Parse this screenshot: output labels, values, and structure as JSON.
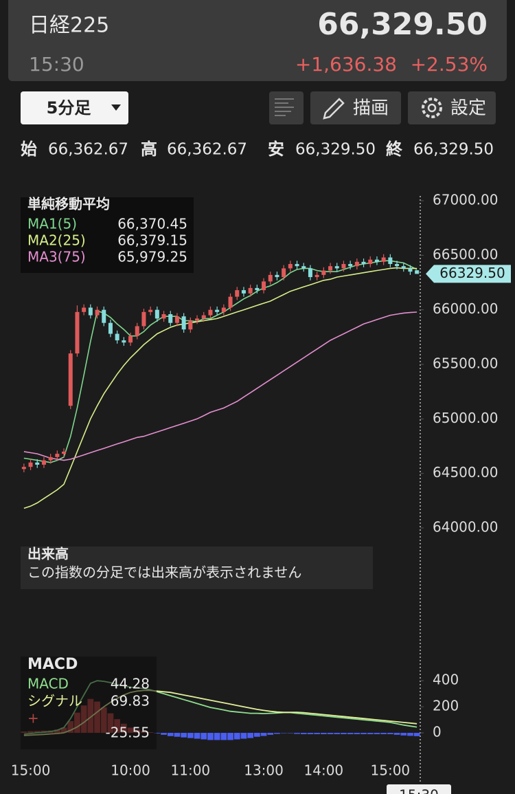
{
  "header": {
    "name": "日経225",
    "price": "66,329.50",
    "time": "15:30",
    "change": "+1,636.38",
    "change_pct": "+2.53%"
  },
  "controls": {
    "interval": "5分足",
    "draw": "描画",
    "settings": "設定"
  },
  "ohlc": {
    "labels": [
      "始",
      "高",
      "安",
      "終"
    ],
    "values": [
      "66,362.67",
      "66,362.67",
      "66,329.50",
      "66,329.50"
    ]
  },
  "volume_panel": {
    "title": "出来高",
    "message": "この指数の分足では出来高が表示されません"
  },
  "cursor_time": "15:30",
  "chart_data": [
    {
      "type": "candlestick",
      "legend_title": "単純移動平均",
      "last_price_label": "66329.50",
      "up_color": "#e05a5a",
      "down_color": "#86dcdc",
      "open": [
        64540,
        64560,
        64600,
        64580,
        64620,
        64650,
        64680,
        65120,
        65600,
        65980,
        66020,
        65950,
        66000,
        65880,
        65780,
        65720,
        65700,
        65760,
        65850,
        65980,
        66000,
        65920,
        65960,
        65880,
        65940,
        65820,
        65900,
        65920,
        65950,
        66000,
        65980,
        66020,
        66120,
        66180,
        66150,
        66200,
        66180,
        66260,
        66320,
        66300,
        66380,
        66420,
        66400,
        66380,
        66300,
        66320,
        66360,
        66400,
        66380,
        66420,
        66400,
        66440,
        66420,
        66460,
        66440,
        66480,
        66420,
        66400,
        66380,
        66362.67
      ],
      "high": [
        64590,
        64630,
        64630,
        64650,
        64680,
        64710,
        64730,
        65630,
        66040,
        66050,
        66050,
        66030,
        66030,
        65910,
        65810,
        65750,
        65790,
        65880,
        66010,
        66030,
        66030,
        65990,
        65990,
        65970,
        65970,
        65930,
        65950,
        65980,
        66030,
        66030,
        66050,
        66150,
        66210,
        66210,
        66230,
        66230,
        66290,
        66350,
        66350,
        66410,
        66450,
        66450,
        66430,
        66410,
        66350,
        66390,
        66430,
        66430,
        66450,
        66450,
        66470,
        66470,
        66490,
        66490,
        66510,
        66510,
        66450,
        66430,
        66410,
        66362.67
      ],
      "low": [
        64510,
        64530,
        64550,
        64550,
        64590,
        64620,
        64650,
        65090,
        65570,
        65950,
        65920,
        65920,
        65850,
        65750,
        65690,
        65670,
        65670,
        65730,
        65820,
        65950,
        65890,
        65890,
        65850,
        65850,
        65790,
        65790,
        65870,
        65890,
        65920,
        65950,
        65950,
        65990,
        66090,
        66120,
        66120,
        66150,
        66150,
        66230,
        66270,
        66270,
        66350,
        66370,
        66350,
        66270,
        66270,
        66290,
        66330,
        66350,
        66350,
        66370,
        66370,
        66390,
        66390,
        66410,
        66410,
        66390,
        66370,
        66350,
        66320,
        66329.5
      ],
      "close": [
        64560,
        64600,
        64580,
        64620,
        64650,
        64680,
        64700,
        65600,
        65980,
        66020,
        65950,
        66000,
        65880,
        65780,
        65720,
        65700,
        65760,
        65850,
        65980,
        66000,
        65920,
        65960,
        65880,
        65940,
        65820,
        65900,
        65920,
        65950,
        66000,
        65980,
        66020,
        66120,
        66180,
        66150,
        66200,
        66180,
        66260,
        66320,
        66300,
        66380,
        66420,
        66400,
        66380,
        66300,
        66320,
        66360,
        66400,
        66380,
        66420,
        66400,
        66440,
        66420,
        66460,
        66440,
        66480,
        66420,
        66400,
        66380,
        66350,
        66329.5
      ],
      "series": [
        {
          "name": "MA1(5)",
          "color": "#7fd88f",
          "legend_value": "66,370.45",
          "values": [
            64640,
            64630,
            64620,
            64610,
            64600,
            64620,
            64650,
            64840,
            65100,
            65400,
            65710,
            65990,
            65970,
            65930,
            65870,
            65820,
            65760,
            65760,
            65800,
            65860,
            65900,
            65940,
            65940,
            65940,
            65900,
            65900,
            65890,
            65920,
            65920,
            65950,
            65980,
            66020,
            66060,
            66100,
            66130,
            66170,
            66200,
            66220,
            66250,
            66290,
            66340,
            66370,
            66380,
            66380,
            66360,
            66350,
            66350,
            66350,
            66370,
            66390,
            66410,
            66420,
            66430,
            66440,
            66450,
            66450,
            66440,
            66430,
            66400,
            66370.45
          ]
        },
        {
          "name": "MA2(25)",
          "color": "#d7ef8a",
          "legend_value": "66,379.15",
          "values": [
            64180,
            64200,
            64230,
            64270,
            64310,
            64350,
            64400,
            64550,
            64700,
            64850,
            65000,
            65120,
            65230,
            65320,
            65410,
            65490,
            65560,
            65620,
            65680,
            65730,
            65780,
            65810,
            65840,
            65860,
            65870,
            65880,
            65890,
            65900,
            65910,
            65920,
            65940,
            65960,
            65980,
            66000,
            66020,
            66040,
            66060,
            66080,
            66110,
            66140,
            66170,
            66190,
            66210,
            66230,
            66250,
            66270,
            66280,
            66300,
            66310,
            66320,
            66330,
            66340,
            66350,
            66360,
            66370,
            66380,
            66385,
            66380,
            66380,
            66379.15
          ]
        },
        {
          "name": "MA3(75)",
          "color": "#e58fd0",
          "legend_value": "65,979.25",
          "values": [
            64700,
            64690,
            64680,
            64660,
            64640,
            64630,
            64620,
            64630,
            64650,
            64670,
            64690,
            64710,
            64730,
            64750,
            64770,
            64790,
            64810,
            64830,
            64840,
            64860,
            64880,
            64900,
            64920,
            64940,
            64960,
            64980,
            65000,
            65030,
            65060,
            65080,
            65100,
            65130,
            65160,
            65200,
            65240,
            65280,
            65320,
            65360,
            65400,
            65440,
            65480,
            65520,
            65560,
            65600,
            65640,
            65680,
            65720,
            65750,
            65780,
            65810,
            65840,
            65870,
            65890,
            65910,
            65930,
            65950,
            65960,
            65970,
            65975,
            65979.25
          ]
        }
      ],
      "ylim": [
        64000,
        67000
      ],
      "yticks": [
        {
          "value": 64000,
          "label": "64000.00"
        },
        {
          "value": 64500,
          "label": "64500.00"
        },
        {
          "value": 65000,
          "label": "65000.00"
        },
        {
          "value": 65500,
          "label": "65500.00"
        },
        {
          "value": 66000,
          "label": "66000.00"
        },
        {
          "value": 66500,
          "label": "66500.00"
        },
        {
          "value": 67000,
          "label": "67000.00"
        }
      ]
    },
    {
      "type": "line",
      "title": "MACD",
      "categories": [
        null,
        "15:00",
        null,
        null,
        null,
        null,
        null,
        null,
        null,
        null,
        null,
        null,
        null,
        null,
        null,
        null,
        "10:00",
        null,
        null,
        null,
        null,
        null,
        null,
        null,
        null,
        "11:00",
        null,
        null,
        null,
        null,
        null,
        null,
        null,
        null,
        null,
        null,
        "13:00",
        null,
        null,
        null,
        null,
        null,
        null,
        null,
        null,
        "14:00",
        null,
        null,
        null,
        null,
        null,
        null,
        null,
        null,
        null,
        "15:00",
        null,
        null,
        null,
        null
      ],
      "series": [
        {
          "name": "MACD",
          "color": "#8fe08f",
          "legend_value": "44.28",
          "values": [
            -10,
            -5,
            0,
            5,
            10,
            20,
            40,
            110,
            200,
            290,
            380,
            400,
            395,
            385,
            370,
            360,
            350,
            345,
            340,
            330,
            315,
            300,
            285,
            270,
            255,
            240,
            225,
            210,
            195,
            185,
            175,
            165,
            160,
            155,
            150,
            150,
            148,
            150,
            152,
            155,
            155,
            150,
            145,
            140,
            135,
            130,
            125,
            120,
            115,
            110,
            105,
            100,
            95,
            90,
            85,
            80,
            70,
            60,
            52,
            44.28
          ]
        },
        {
          "name": "シグナル",
          "color": "#e3f09a",
          "legend_value": "69.83",
          "values": [
            -20,
            -18,
            -15,
            -12,
            -8,
            -5,
            0,
            20,
            45,
            80,
            120,
            160,
            200,
            235,
            265,
            290,
            310,
            320,
            325,
            325,
            320,
            315,
            310,
            300,
            290,
            280,
            270,
            260,
            250,
            240,
            230,
            220,
            210,
            200,
            190,
            180,
            172,
            165,
            160,
            158,
            158,
            158,
            155,
            150,
            145,
            140,
            135,
            130,
            125,
            120,
            115,
            110,
            105,
            100,
            95,
            90,
            85,
            80,
            75,
            69.83
          ]
        },
        {
          "name": "+",
          "style": "bar",
          "color": "#b04442",
          "negative_color": "#4a5ef0",
          "legend_value": "-25.55",
          "values": [
            10,
            13,
            15,
            17,
            18,
            25,
            40,
            90,
            155,
            210,
            260,
            240,
            195,
            150,
            105,
            70,
            40,
            25,
            15,
            5,
            -5,
            -15,
            -25,
            -30,
            -35,
            -40,
            -45,
            -50,
            -55,
            -55,
            -55,
            -55,
            -50,
            -45,
            -40,
            -30,
            -24,
            -15,
            -8,
            -3,
            -3,
            -8,
            -10,
            -10,
            -10,
            -10,
            -10,
            -10,
            -10,
            -10,
            -10,
            -10,
            -10,
            -10,
            -10,
            -10,
            -15,
            -20,
            -23,
            -25.55
          ]
        }
      ],
      "ylim": [
        -100,
        480
      ],
      "yticks": [
        0,
        200,
        400
      ]
    }
  ]
}
